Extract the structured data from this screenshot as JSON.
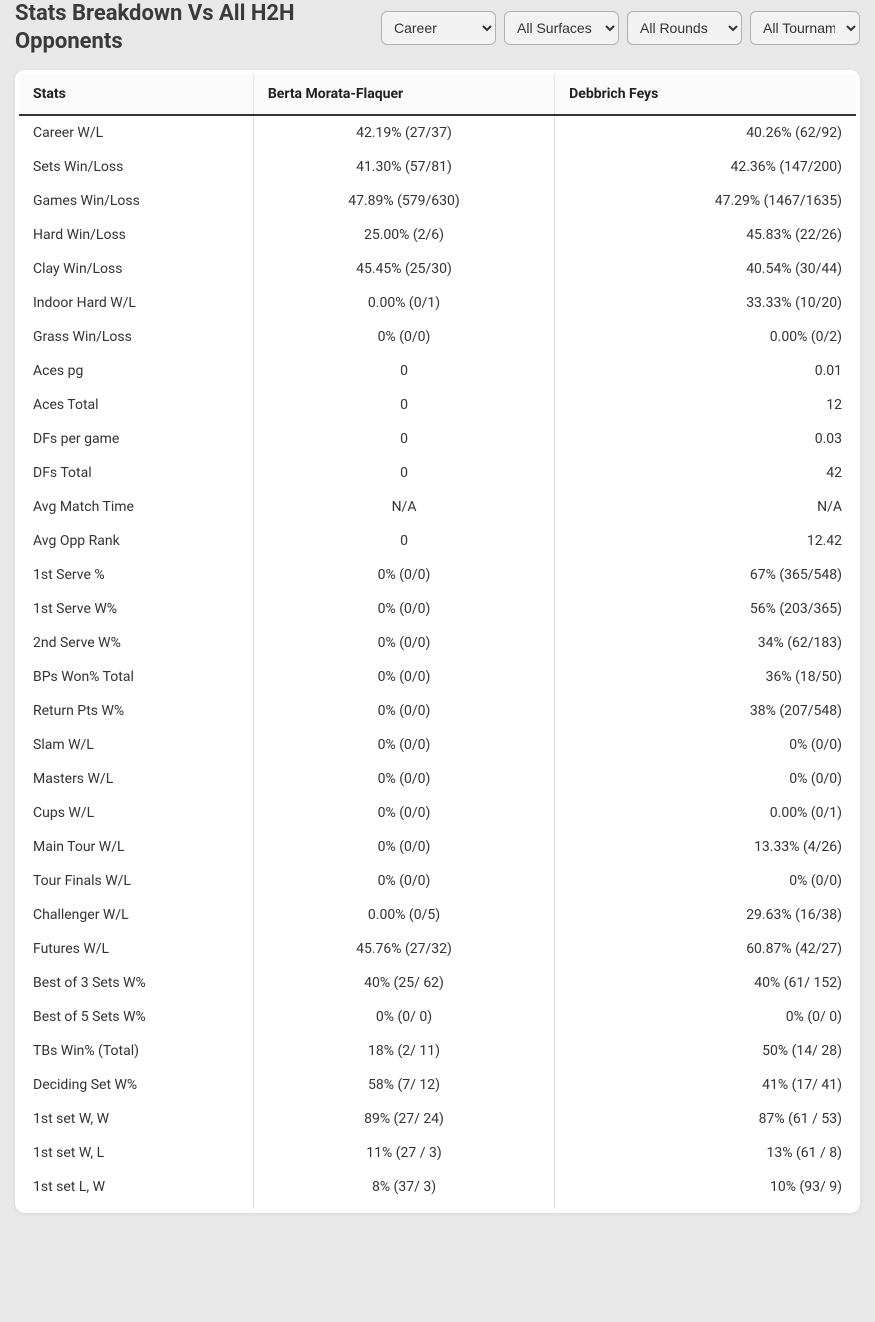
{
  "page_title": "Stats Breakdown Vs All H2H Opponents",
  "selectors": {
    "period": {
      "selected": "Career"
    },
    "surface": {
      "selected": "All Surfaces"
    },
    "rounds": {
      "selected": "All Rounds"
    },
    "tournament": {
      "selected": "All Tournam"
    }
  },
  "table": {
    "columns": [
      "Stats",
      "Berta Morata-Flaquer",
      "Debbrich Feys"
    ],
    "rows": [
      {
        "stat": "Career W/L",
        "p1": "42.19% (27/37)",
        "p2": "40.26% (62/92)"
      },
      {
        "stat": "Sets Win/Loss",
        "p1": "41.30% (57/81)",
        "p2": "42.36% (147/200)"
      },
      {
        "stat": "Games Win/Loss",
        "p1": "47.89% (579/630)",
        "p2": "47.29% (1467/1635)"
      },
      {
        "stat": "Hard Win/Loss",
        "p1": "25.00% (2/6)",
        "p2": "45.83% (22/26)"
      },
      {
        "stat": "Clay Win/Loss",
        "p1": "45.45% (25/30)",
        "p2": "40.54% (30/44)"
      },
      {
        "stat": "Indoor Hard W/L",
        "p1": "0.00% (0/1)",
        "p2": "33.33% (10/20)"
      },
      {
        "stat": "Grass Win/Loss",
        "p1": "0% (0/0)",
        "p2": "0.00% (0/2)"
      },
      {
        "stat": "Aces pg",
        "p1": "0",
        "p2": "0.01"
      },
      {
        "stat": "Aces Total",
        "p1": "0",
        "p2": "12"
      },
      {
        "stat": "DFs per game",
        "p1": "0",
        "p2": "0.03"
      },
      {
        "stat": "DFs Total",
        "p1": "0",
        "p2": "42"
      },
      {
        "stat": "Avg Match Time",
        "p1": "N/A",
        "p2": "N/A"
      },
      {
        "stat": "Avg Opp Rank",
        "p1": "0",
        "p2": "12.42"
      },
      {
        "stat": "1st Serve %",
        "p1": "0% (0/0)",
        "p2": "67% (365/548)"
      },
      {
        "stat": "1st Serve W%",
        "p1": "0% (0/0)",
        "p2": "56% (203/365)"
      },
      {
        "stat": "2nd Serve W%",
        "p1": "0% (0/0)",
        "p2": "34% (62/183)"
      },
      {
        "stat": "BPs Won% Total",
        "p1": "0% (0/0)",
        "p2": "36% (18/50)"
      },
      {
        "stat": "Return Pts W%",
        "p1": "0% (0/0)",
        "p2": "38% (207/548)"
      },
      {
        "stat": "Slam W/L",
        "p1": "0% (0/0)",
        "p2": "0% (0/0)"
      },
      {
        "stat": "Masters W/L",
        "p1": "0% (0/0)",
        "p2": "0% (0/0)"
      },
      {
        "stat": "Cups W/L",
        "p1": "0% (0/0)",
        "p2": "0.00% (0/1)"
      },
      {
        "stat": "Main Tour W/L",
        "p1": "0% (0/0)",
        "p2": "13.33% (4/26)"
      },
      {
        "stat": "Tour Finals W/L",
        "p1": "0% (0/0)",
        "p2": "0% (0/0)"
      },
      {
        "stat": "Challenger W/L",
        "p1": "0.00% (0/5)",
        "p2": "29.63% (16/38)"
      },
      {
        "stat": "Futures W/L",
        "p1": "45.76% (27/32)",
        "p2": "60.87% (42/27)"
      },
      {
        "stat": "Best of 3 Sets W%",
        "p1": "40% (25/ 62)",
        "p2": "40% (61/ 152)"
      },
      {
        "stat": "Best of 5 Sets W%",
        "p1": "0% (0/ 0)",
        "p2": "0% (0/ 0)"
      },
      {
        "stat": "TBs Win% (Total)",
        "p1": "18% (2/ 11)",
        "p2": "50% (14/ 28)"
      },
      {
        "stat": "Deciding Set W%",
        "p1": "58% (7/ 12)",
        "p2": "41% (17/ 41)"
      },
      {
        "stat": "1st set W, W",
        "p1": "89% (27/ 24)",
        "p2": "87% (61 / 53)"
      },
      {
        "stat": "1st set W, L",
        "p1": "11% (27 / 3)",
        "p2": "13% (61 / 8)"
      },
      {
        "stat": "1st set L, W",
        "p1": "8% (37/ 3)",
        "p2": "10% (93/ 9)"
      }
    ],
    "styling": {
      "header_bg": "#fafafa",
      "header_border_bottom": "#333333",
      "cell_border": "#e0e0e0",
      "font_size_header": 14,
      "font_size_body": 14,
      "text_color": "#333333",
      "container_bg": "#ffffff",
      "page_bg": "#e8e8e8",
      "title_color": "#3a3a3a",
      "col_widths": [
        "28%",
        "36%",
        "36%"
      ],
      "col_align": [
        "left",
        "center",
        "right"
      ]
    }
  }
}
